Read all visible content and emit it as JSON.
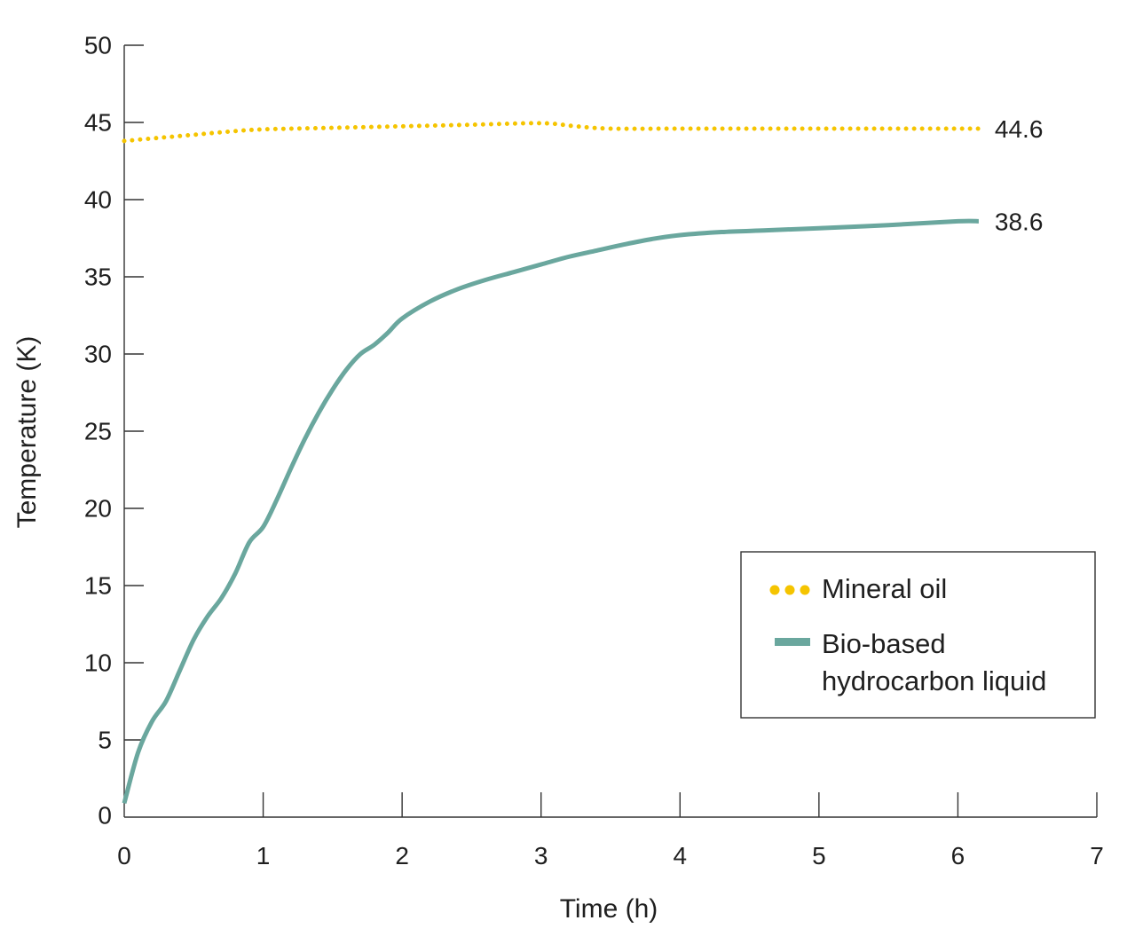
{
  "chart_data": {
    "type": "line",
    "xlabel": "Time (h)",
    "ylabel": "Temperature (K)",
    "xlim": [
      0,
      7
    ],
    "ylim": [
      0,
      50
    ],
    "xticks": [
      "0",
      "1",
      "2",
      "3",
      "4",
      "5",
      "6",
      "7"
    ],
    "yticks": [
      "0",
      "5",
      "10",
      "15",
      "20",
      "25",
      "30",
      "35",
      "40",
      "45",
      "50"
    ],
    "grid": false,
    "legend_position": "bottom-right",
    "series": [
      {
        "name": "Mineral oil",
        "style": "dotted",
        "color": "#f5c400",
        "end_label": "44.6",
        "x": [
          0,
          0.25,
          0.5,
          0.75,
          1.0,
          1.5,
          2.0,
          2.5,
          3.0,
          3.25,
          3.5,
          4.0,
          4.5,
          5.0,
          5.5,
          6.0,
          6.15
        ],
        "y": [
          43.8,
          44.0,
          44.2,
          44.4,
          44.55,
          44.65,
          44.75,
          44.85,
          44.95,
          44.75,
          44.6,
          44.6,
          44.6,
          44.6,
          44.6,
          44.6,
          44.6
        ]
      },
      {
        "name": "Bio-based hydrocarbon liquid",
        "style": "solid",
        "color": "#6aa79e",
        "end_label": "38.6",
        "x": [
          0,
          0.1,
          0.2,
          0.3,
          0.4,
          0.5,
          0.6,
          0.7,
          0.8,
          0.9,
          1.0,
          1.1,
          1.2,
          1.3,
          1.4,
          1.5,
          1.6,
          1.7,
          1.8,
          1.9,
          2.0,
          2.2,
          2.4,
          2.6,
          2.8,
          3.0,
          3.2,
          3.4,
          3.6,
          3.8,
          4.0,
          4.3,
          4.6,
          5.0,
          5.5,
          6.0,
          6.15
        ],
        "y": [
          0.9,
          4.2,
          6.2,
          7.5,
          9.5,
          11.5,
          13.0,
          14.2,
          15.8,
          17.8,
          18.8,
          20.6,
          22.6,
          24.5,
          26.2,
          27.7,
          29.0,
          30.0,
          30.6,
          31.4,
          32.3,
          33.4,
          34.2,
          34.8,
          35.3,
          35.8,
          36.3,
          36.7,
          37.1,
          37.45,
          37.7,
          37.9,
          38.0,
          38.15,
          38.35,
          38.6,
          38.6
        ]
      }
    ]
  }
}
